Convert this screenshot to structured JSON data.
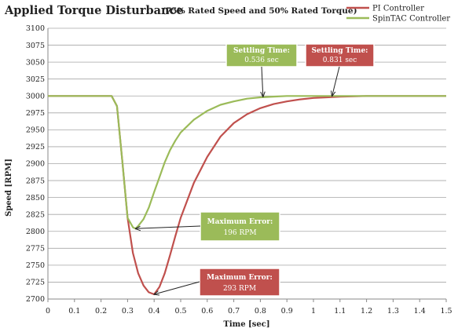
{
  "chart_data": {
    "type": "line",
    "title": "Applied Torque Disturbance",
    "subtitle": "(75% Rated Speed and 50% Rated Torque)",
    "xlabel": "Time [sec]",
    "ylabel": "Speed [RPM]",
    "xlim": [
      0,
      1.5
    ],
    "ylim": [
      2700,
      3100
    ],
    "x_ticks": [
      "0",
      "0.1",
      "0.2",
      "0.3",
      "0.4",
      "0.5",
      "0.6",
      "0.7",
      "0.8",
      "0.9",
      "1",
      "1.1",
      "1.2",
      "1.3",
      "1.4",
      "1.5"
    ],
    "y_ticks": [
      "2700",
      "2725",
      "2750",
      "2775",
      "2800",
      "2825",
      "2850",
      "2875",
      "2900",
      "2925",
      "2950",
      "2975",
      "3000",
      "3025",
      "3050",
      "3075",
      "3100"
    ],
    "grid": "horizontal",
    "legend_position": "top-right",
    "colors": {
      "pi": "#c0504d",
      "spintac": "#9bbb59",
      "pi_box": "#c0504d",
      "spintac_box": "#9bbb59"
    },
    "series": [
      {
        "name": "PI Controller",
        "x": [
          0,
          0.24,
          0.26,
          0.28,
          0.3,
          0.32,
          0.34,
          0.36,
          0.38,
          0.4,
          0.42,
          0.44,
          0.46,
          0.48,
          0.5,
          0.55,
          0.6,
          0.65,
          0.7,
          0.75,
          0.8,
          0.85,
          0.9,
          0.95,
          1.0,
          1.05,
          1.1,
          1.2,
          1.3,
          1.4,
          1.5
        ],
        "y": [
          3000,
          3000,
          2985,
          2905,
          2820,
          2768,
          2738,
          2720,
          2710,
          2707,
          2718,
          2738,
          2765,
          2793,
          2820,
          2872,
          2910,
          2940,
          2960,
          2973,
          2982,
          2988,
          2992,
          2995,
          2997,
          2998,
          2999,
          3000,
          3000,
          3000,
          3000
        ]
      },
      {
        "name": "SpinTAC Controller",
        "x": [
          0,
          0.24,
          0.26,
          0.28,
          0.3,
          0.32,
          0.33,
          0.34,
          0.36,
          0.38,
          0.4,
          0.42,
          0.44,
          0.46,
          0.48,
          0.5,
          0.55,
          0.6,
          0.65,
          0.7,
          0.75,
          0.8,
          0.85,
          0.9,
          1.0,
          1.1,
          1.2,
          1.3,
          1.4,
          1.5
        ],
        "y": [
          3000,
          3000,
          2985,
          2905,
          2820,
          2806,
          2804,
          2808,
          2818,
          2835,
          2858,
          2880,
          2902,
          2920,
          2934,
          2946,
          2965,
          2978,
          2987,
          2992,
          2996,
          2998,
          2999,
          3000,
          3000,
          3000,
          3000,
          3000,
          3000,
          3000
        ]
      }
    ],
    "annotations": [
      {
        "id": "pi-settling",
        "title": "Settling Time:",
        "value": "0.831 sec",
        "color": "pi",
        "target": [
          1.07,
          3000
        ]
      },
      {
        "id": "spintac-settling",
        "title": "Settling Time:",
        "value": "0.536 sec",
        "color": "spintac",
        "target": [
          0.81,
          2999
        ]
      },
      {
        "id": "spintac-max-error",
        "title": "Maximum Error:",
        "value": "196 RPM",
        "color": "spintac",
        "target": [
          0.33,
          2804
        ]
      },
      {
        "id": "pi-max-error",
        "title": "Maximum Error:",
        "value": "293 RPM",
        "color": "pi",
        "target": [
          0.4,
          2707
        ]
      }
    ]
  }
}
